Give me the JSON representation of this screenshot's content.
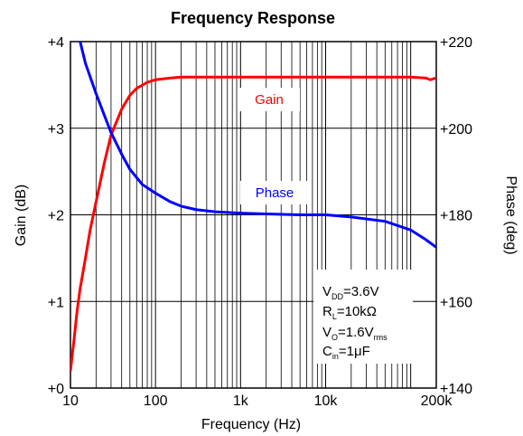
{
  "chart_data": {
    "type": "line",
    "title": "Frequency Response",
    "xlabel": "Frequency (Hz)",
    "ylabel_left": "Gain (dB)",
    "ylabel_right": "Phase (deg)",
    "x_scale": "log",
    "xlim": [
      10,
      200000
    ],
    "ylim_left": [
      0,
      4
    ],
    "ylim_right": [
      140,
      220
    ],
    "grid": true,
    "x_ticks": [
      {
        "value": 10,
        "label": "10"
      },
      {
        "value": 100,
        "label": "100"
      },
      {
        "value": 1000,
        "label": "1k"
      },
      {
        "value": 10000,
        "label": "10k"
      },
      {
        "value": 200000,
        "label": "200k"
      }
    ],
    "y_ticks_left": [
      {
        "value": 0,
        "label": "+0"
      },
      {
        "value": 1,
        "label": "+1"
      },
      {
        "value": 2,
        "label": "+2"
      },
      {
        "value": 3,
        "label": "+3"
      },
      {
        "value": 4,
        "label": "+4"
      }
    ],
    "y_ticks_right": [
      {
        "value": 140,
        "label": "+140"
      },
      {
        "value": 160,
        "label": "+160"
      },
      {
        "value": 180,
        "label": "+180"
      },
      {
        "value": 200,
        "label": "+200"
      },
      {
        "value": 220,
        "label": "+220"
      }
    ],
    "series": [
      {
        "name": "Gain",
        "axis": "left",
        "color": "#ff0000",
        "x": [
          10,
          11,
          12,
          13,
          15,
          17,
          20,
          25,
          30,
          40,
          50,
          60,
          80,
          100,
          150,
          200,
          300,
          500,
          1000,
          2000,
          5000,
          10000,
          20000,
          50000,
          100000,
          150000,
          170000,
          200000
        ],
        "values": [
          0.2,
          0.55,
          0.9,
          1.15,
          1.5,
          1.82,
          2.15,
          2.6,
          2.92,
          3.22,
          3.38,
          3.46,
          3.53,
          3.56,
          3.58,
          3.59,
          3.59,
          3.59,
          3.59,
          3.59,
          3.59,
          3.59,
          3.59,
          3.59,
          3.59,
          3.58,
          3.56,
          3.58
        ]
      },
      {
        "name": "Phase",
        "axis": "right",
        "color": "#0000ff",
        "x": [
          10,
          13,
          15,
          20,
          25,
          30,
          40,
          50,
          70,
          100,
          150,
          200,
          300,
          500,
          1000,
          2000,
          5000,
          10000,
          20000,
          50000,
          100000,
          150000,
          200000
        ],
        "values": [
          222,
          220,
          215,
          208,
          203,
          199,
          194,
          190.5,
          187,
          185,
          183,
          182,
          181.2,
          180.7,
          180.4,
          180.2,
          180,
          180,
          179.5,
          178.5,
          176.5,
          174.3,
          172.5
        ]
      }
    ],
    "annotations": [
      {
        "label": "Gain",
        "color": "#ff0000"
      },
      {
        "label": "Phase",
        "color": "#0000ff"
      }
    ],
    "conditions_box": {
      "lines": [
        {
          "main": "V",
          "sub": "DD",
          "rest": "=3.6V"
        },
        {
          "main": "R",
          "sub": "L",
          "rest": "=10kΩ"
        },
        {
          "main": "V",
          "sub": "O",
          "rest": "=1.6V",
          "sub2": "rms"
        },
        {
          "main": "C",
          "sub": "in",
          "rest": "=1μF"
        }
      ]
    }
  }
}
